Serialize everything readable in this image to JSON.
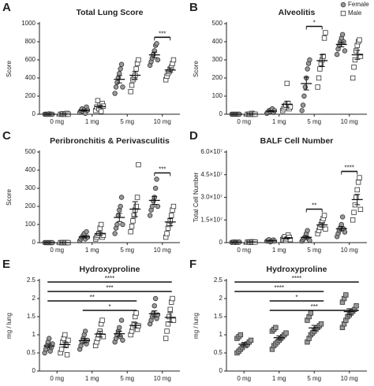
{
  "chart_data": [
    {
      "type": "scatter",
      "panel": "A",
      "title": "Total Lung Score",
      "y_label": "Score",
      "categories": [
        "0 mg",
        "1 mg",
        "5 mg",
        "10 mg"
      ],
      "ylim": [
        0,
        1000
      ],
      "yticks": [
        0,
        200,
        400,
        600,
        800,
        1000
      ],
      "series": [
        {
          "name": "Female",
          "color": "#9a9a9a",
          "marker": "circle",
          "values": [
            [
              0,
              0,
              0,
              0,
              5,
              0,
              0,
              0
            ],
            [
              20,
              40,
              60,
              30,
              50,
              10,
              80,
              45
            ],
            [
              230,
              300,
              350,
              400,
              450,
              500,
              550,
              300
            ],
            [
              540,
              580,
              620,
              660,
              700,
              760,
              780,
              600
            ]
          ],
          "means": [
            1,
            42,
            385,
            655
          ],
          "errors": [
            1,
            8,
            40,
            30
          ]
        },
        {
          "name": "Male",
          "color": "#ffffff",
          "marker": "square",
          "values": [
            [
              0,
              0,
              5,
              0,
              0,
              0,
              10,
              0
            ],
            [
              40,
              80,
              150,
              60,
              100,
              30,
              120,
              90
            ],
            [
              250,
              320,
              380,
              400,
              430,
              500,
              560,
              600
            ],
            [
              380,
              420,
              450,
              470,
              500,
              520,
              560,
              600
            ]
          ],
          "means": [
            2,
            84,
            430,
            488
          ],
          "errors": [
            1,
            14,
            42,
            25
          ]
        }
      ],
      "annotations": [
        {
          "text": "***",
          "from": "10 mg",
          "to": "10 mg"
        }
      ]
    },
    {
      "type": "scatter",
      "panel": "B",
      "title": "Alveolitis",
      "y_label": "Score",
      "legend": "upper right",
      "categories": [
        "0 mg",
        "1 mg",
        "5 mg",
        "10 mg"
      ],
      "ylim": [
        0,
        500
      ],
      "yticks": [
        0,
        100,
        200,
        300,
        400,
        500
      ],
      "series": [
        {
          "name": "Female",
          "color": "#9a9a9a",
          "marker": "circle",
          "values": [
            [
              0,
              0,
              0,
              0,
              0,
              0,
              0,
              0
            ],
            [
              5,
              10,
              20,
              15,
              25,
              30,
              10,
              20
            ],
            [
              20,
              50,
              100,
              150,
              200,
              250,
              280,
              300
            ],
            [
              330,
              360,
              380,
              400,
              420,
              440,
              400,
              350
            ]
          ],
          "means": [
            0,
            17,
            169,
            385
          ],
          "errors": [
            0,
            3,
            35,
            13
          ]
        },
        {
          "name": "Male",
          "color": "#ffffff",
          "marker": "square",
          "values": [
            [
              0,
              0,
              0,
              0,
              5,
              0,
              0,
              0
            ],
            [
              20,
              30,
              40,
              50,
              170,
              60,
              30,
              40
            ],
            [
              150,
              200,
              250,
              280,
              300,
              320,
              420,
              450
            ],
            [
              200,
              260,
              300,
              350,
              380,
              400,
              410,
              320
            ]
          ],
          "means": [
            1,
            55,
            296,
            328
          ],
          "errors": [
            1,
            17,
            33,
            25
          ]
        }
      ],
      "annotations": [
        {
          "text": "*",
          "from": "5 mg",
          "to": "5 mg"
        }
      ]
    },
    {
      "type": "scatter",
      "panel": "C",
      "title": "Peribronchitis & Perivasculitis",
      "y_label": "Score",
      "categories": [
        "0 mg",
        "1 mg",
        "5 mg",
        "10 mg"
      ],
      "ylim": [
        0,
        500
      ],
      "yticks": [
        0,
        100,
        200,
        300,
        400,
        500
      ],
      "series": [
        {
          "name": "Female",
          "color": "#9a9a9a",
          "marker": "circle",
          "values": [
            [
              0,
              0,
              0,
              0,
              0,
              0,
              0,
              0
            ],
            [
              10,
              20,
              30,
              40,
              50,
              20,
              60,
              30
            ],
            [
              50,
              80,
              100,
              150,
              180,
              200,
              250,
              100
            ],
            [
              150,
              180,
              200,
              230,
              250,
              300,
              350,
              200
            ]
          ],
          "means": [
            0,
            32,
            139,
            233
          ],
          "errors": [
            0,
            6,
            23,
            22
          ]
        },
        {
          "name": "Male",
          "color": "#ffffff",
          "marker": "square",
          "values": [
            [
              0,
              0,
              0,
              0,
              0,
              0,
              0,
              0
            ],
            [
              20,
              30,
              40,
              50,
              80,
              100,
              30,
              40
            ],
            [
              60,
              90,
              120,
              150,
              180,
              200,
              250,
              430
            ],
            [
              30,
              50,
              80,
              100,
              120,
              150,
              180,
              200
            ]
          ],
          "means": [
            0,
            49,
            185,
            114
          ],
          "errors": [
            0,
            9,
            41,
            20
          ]
        }
      ],
      "annotations": [
        {
          "text": "***",
          "from": "10 mg",
          "to": "10 mg"
        }
      ]
    },
    {
      "type": "scatter",
      "panel": "D",
      "title": "BALF Cell Number",
      "y_label": "Total Cell Number",
      "categories": [
        "0 mg",
        "1 mg",
        "5 mg",
        "10 mg"
      ],
      "ylim": [
        0,
        60000000
      ],
      "yticks": [
        0,
        {
          "value": 15000000,
          "label": "1.5×10⁷"
        },
        {
          "value": 30000000,
          "label": "3.0×10⁷"
        },
        {
          "value": 45000000,
          "label": "4.5×10⁷"
        },
        {
          "value": 60000000,
          "label": "6.0×10⁷"
        }
      ],
      "series": [
        {
          "name": "Female",
          "color": "#9a9a9a",
          "marker": "circle",
          "values": [
            [
              200000,
              300000,
              500000,
              100000,
              400000,
              300000,
              200000,
              400000
            ],
            [
              1000000,
              1500000,
              2000000,
              500000,
              800000,
              1200000,
              1800000,
              1000000
            ],
            [
              1000000,
              2000000,
              3000000,
              4000000,
              6000000,
              8000000,
              2500000,
              1500000
            ],
            [
              4000000,
              6000000,
              8000000,
              10000000,
              12000000,
              17000000,
              9000000,
              7000000
            ]
          ],
          "means": [
            300000,
            1225000,
            3500000,
            9250000
          ],
          "errors": [
            60000,
            200000,
            800000,
            1400000
          ]
        },
        {
          "name": "Male",
          "color": "#ffffff",
          "marker": "square",
          "values": [
            [
              300000,
              500000,
              400000,
              200000,
              600000,
              300000,
              500000,
              400000
            ],
            [
              2000000,
              3000000,
              4000000,
              1500000,
              2500000,
              5000000,
              3500000,
              2000000
            ],
            [
              6000000,
              8000000,
              10000000,
              12000000,
              14000000,
              16000000,
              18000000,
              9000000
            ],
            [
              15000000,
              20000000,
              25000000,
              30000000,
              35000000,
              40000000,
              43000000,
              22000000
            ]
          ],
          "means": [
            400000,
            2940000,
            11750000,
            28500000
          ],
          "errors": [
            80000,
            400000,
            1400000,
            3400000
          ]
        }
      ],
      "annotations": [
        {
          "text": "**",
          "from": "5 mg",
          "to": "5 mg"
        },
        {
          "text": "****",
          "from": "10 mg",
          "to": "10 mg"
        }
      ]
    },
    {
      "type": "scatter",
      "panel": "E",
      "title": "Hydroxyproline",
      "y_label": "mg / lung",
      "categories": [
        "0 mg",
        "1 mg",
        "5 mg",
        "10 mg"
      ],
      "ylim": [
        0,
        2.5
      ],
      "yticks": [
        0,
        0.5,
        1,
        1.5,
        2,
        2.5
      ],
      "series": [
        {
          "name": "Female",
          "color": "#9a9a9a",
          "marker": "circle",
          "values": [
            [
              0.5,
              0.6,
              0.7,
              0.8,
              0.9,
              0.55,
              0.65,
              0.75
            ],
            [
              0.6,
              0.7,
              0.8,
              0.9,
              1.0,
              1.1,
              0.75,
              0.85
            ],
            [
              0.8,
              0.9,
              1.0,
              1.1,
              1.2,
              0.95,
              1.4,
              0.85
            ],
            [
              1.3,
              1.4,
              1.5,
              1.6,
              1.8,
              2.0,
              1.45,
              1.55
            ]
          ],
          "means": [
            0.69,
            0.84,
            1.03,
            1.58
          ],
          "errors": [
            0.05,
            0.06,
            0.07,
            0.08
          ]
        },
        {
          "name": "Male",
          "color": "#ffffff",
          "marker": "square",
          "values": [
            [
              0.5,
              0.6,
              0.8,
              0.9,
              1.0,
              0.7,
              0.45,
              0.85
            ],
            [
              0.7,
              0.8,
              0.9,
              1.0,
              1.1,
              1.3,
              1.4,
              0.95
            ],
            [
              1.0,
              1.1,
              1.2,
              1.3,
              1.5,
              1.6,
              1.15,
              1.25
            ],
            [
              0.9,
              1.1,
              1.3,
              1.5,
              1.7,
              1.9,
              2.0,
              1.4
            ]
          ],
          "means": [
            0.73,
            1.02,
            1.26,
            1.48
          ],
          "errors": [
            0.07,
            0.08,
            0.07,
            0.13
          ]
        }
      ],
      "annotations": [
        {
          "text": "****",
          "from": "0 mg",
          "to": "10 mg"
        },
        {
          "text": "***",
          "from": "0 mg",
          "to": "10 mg"
        },
        {
          "text": "**",
          "from": "0 mg",
          "to": "5 mg"
        },
        {
          "text": "*",
          "from": "1 mg",
          "to": "5 mg"
        }
      ]
    },
    {
      "type": "scatter",
      "panel": "F",
      "title": "Hydroxyproline",
      "y_label": "mg / lung",
      "categories": [
        "0 mg",
        "1 mg",
        "5 mg",
        "10 mg"
      ],
      "ylim": [
        0,
        2.5
      ],
      "yticks": [
        0,
        0.5,
        1,
        1.5,
        2,
        2.5
      ],
      "series": [
        {
          "color": "#9a9a9a",
          "marker": "square",
          "values": [
            [
              0.5,
              0.55,
              0.6,
              0.65,
              0.7,
              0.7,
              0.75,
              0.8,
              0.85,
              0.9,
              0.95,
              1.0
            ],
            [
              0.6,
              0.7,
              0.75,
              0.8,
              0.85,
              0.9,
              0.95,
              1.0,
              1.05,
              1.1,
              1.15,
              1.2
            ],
            [
              0.8,
              0.9,
              1.0,
              1.05,
              1.1,
              1.15,
              1.2,
              1.25,
              1.3,
              1.4,
              1.5,
              1.6
            ],
            [
              1.2,
              1.3,
              1.4,
              1.5,
              1.55,
              1.6,
              1.65,
              1.7,
              1.8,
              1.9,
              2.0,
              2.1
            ]
          ],
          "means": [
            0.74,
            0.92,
            1.19,
            1.64
          ],
          "errors": [
            0.05,
            0.05,
            0.07,
            0.08
          ]
        }
      ],
      "annotations": [
        {
          "text": "****",
          "from": "0 mg",
          "to": "10 mg"
        },
        {
          "text": "****",
          "from": "0 mg",
          "to": "5 mg"
        },
        {
          "text": "*",
          "from": "1 mg",
          "to": "5 mg"
        },
        {
          "text": "***",
          "from": "1 mg",
          "to": "10 mg"
        }
      ]
    }
  ]
}
